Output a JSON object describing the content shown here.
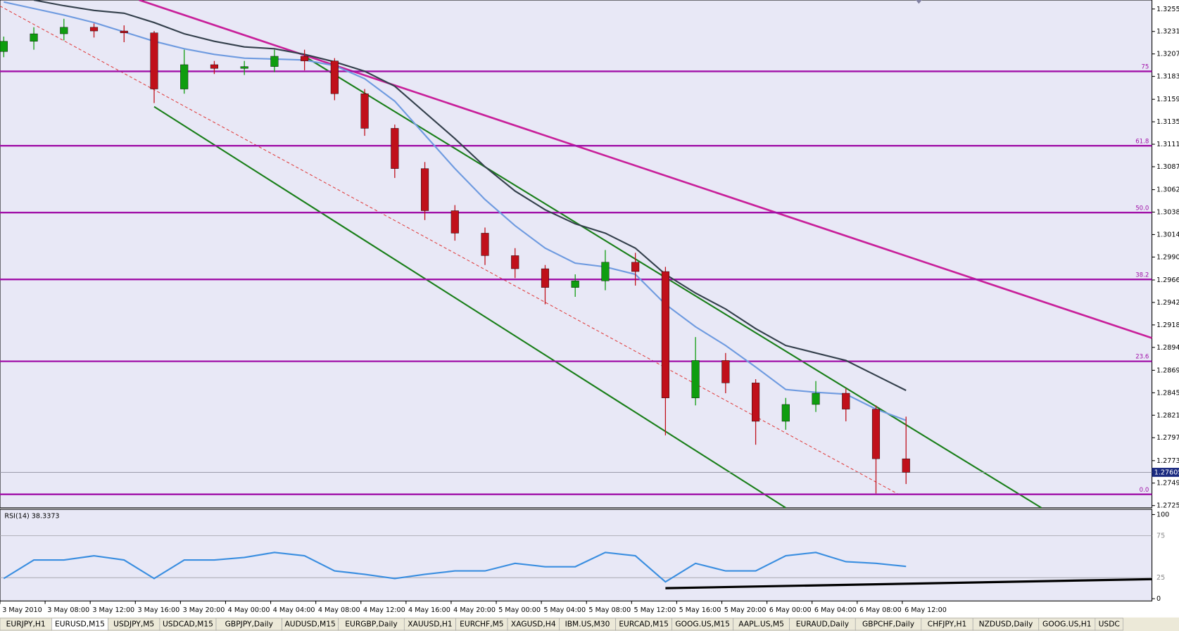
{
  "chart_data": {
    "type": "candlestick",
    "ylim": [
      1.27226,
      1.32651
    ],
    "yticks": [
      1.32555,
      1.32315,
      1.32075,
      1.31835,
      {
        "value": 1.3159,
        "label": "1.31590"
      },
      {
        "value": 1.3135,
        "label": "1.31350"
      },
      {
        "value": 1.3111,
        "label": "1.31110"
      },
      {
        "value": 1.3087,
        "label": "1.30870"
      },
      1.30625,
      1.30385,
      1.30145,
      1.29905,
      {
        "value": 1.2966,
        "label": "1.29660"
      },
      {
        "value": 1.2942,
        "label": "1.29420"
      },
      {
        "value": 1.2918,
        "label": "1.29180"
      },
      {
        "value": 1.2894,
        "label": "1.28940"
      },
      1.28695,
      1.28455,
      1.28215,
      1.27975,
      {
        "value": 1.2773,
        "label": "1.27730"
      },
      {
        "value": 1.2749,
        "label": "1.27490"
      },
      {
        "value": 1.2725,
        "label": "1.27250"
      }
    ],
    "up_color": "#0f9d0f",
    "down_color": "#c0101a",
    "open": [
      1.321,
      1.3221,
      1.3229,
      1.3236,
      1.3232,
      1.323,
      1.317,
      1.3196,
      1.3192,
      1.3194,
      1.3205,
      1.32,
      1.3165,
      1.3128,
      1.3085,
      1.304,
      1.3016,
      1.2992,
      1.2978,
      1.2958,
      1.2965,
      1.2985,
      1.2975,
      1.284,
      1.288,
      1.2856,
      1.2815,
      1.2833,
      1.2845,
      1.2828,
      1.2775
    ],
    "high": [
      1.3226,
      1.3236,
      1.3245,
      1.324,
      1.3238,
      1.3232,
      1.3212,
      1.32,
      1.32,
      1.3212,
      1.3212,
      1.3203,
      1.317,
      1.3132,
      1.3092,
      1.3046,
      1.3022,
      1.3,
      1.2982,
      1.2972,
      1.2998,
      1.2995,
      1.298,
      1.2905,
      1.2888,
      1.286,
      1.284,
      1.2858,
      1.285,
      1.2832,
      1.282
    ],
    "low": [
      1.3204,
      1.3212,
      1.3222,
      1.3225,
      1.322,
      1.3155,
      1.3165,
      1.3186,
      1.3185,
      1.3188,
      1.319,
      1.3158,
      1.312,
      1.3075,
      1.303,
      1.3008,
      1.2982,
      1.2968,
      1.294,
      1.2948,
      1.2955,
      1.296,
      1.28,
      1.2832,
      1.2845,
      1.279,
      1.2806,
      1.2825,
      1.2815,
      1.2738,
      1.2748
    ],
    "close": [
      1.3221,
      1.3229,
      1.3236,
      1.3232,
      1.323,
      1.317,
      1.3196,
      1.3192,
      1.3194,
      1.3205,
      1.32,
      1.3165,
      1.3128,
      1.3085,
      1.304,
      1.3016,
      1.2992,
      1.2978,
      1.2958,
      1.2965,
      1.2985,
      1.2975,
      1.284,
      1.288,
      1.2856,
      1.2815,
      1.2833,
      1.2845,
      1.2828,
      1.2775,
      1.27605
    ],
    "series": [
      {
        "color": "#6f9be0",
        "values": [
          1.3263,
          1.3256,
          1.3249,
          1.3241,
          1.3231,
          1.3221,
          1.3213,
          1.3207,
          1.3203,
          1.3202,
          1.3201,
          1.3195,
          1.3181,
          1.3157,
          1.3121,
          1.3085,
          1.3052,
          1.3024,
          1.3,
          1.2984,
          1.298,
          1.2972,
          1.294,
          1.2916,
          1.2896,
          1.2873,
          1.2849,
          1.2846,
          1.2844,
          1.2828,
          1.2816
        ]
      },
      {
        "color": "#34404c",
        "values": [
          null,
          1.3265,
          1.3259,
          1.3254,
          1.3251,
          1.3241,
          1.3229,
          1.3221,
          1.3215,
          1.3213,
          1.3207,
          1.3199,
          1.3189,
          1.3173,
          1.3145,
          1.3117,
          1.3087,
          1.3061,
          1.3041,
          1.3026,
          1.3016,
          1.3,
          1.2972,
          1.2952,
          1.2935,
          1.2914,
          1.2896,
          1.2888,
          1.288,
          1.2864,
          1.2848
        ]
      }
    ],
    "fib_color": "#a010a8",
    "fib_levels": [
      {
        "label": "75",
        "price": 1.31889
      },
      {
        "label": "61.8",
        "price": 1.31094
      },
      {
        "label": "50.0",
        "price": 1.3038
      },
      {
        "label": "38.2",
        "price": 1.29666
      },
      {
        "label": "23.6",
        "price": 1.28791
      },
      {
        "label": "0.0",
        "price": 1.2737
      }
    ],
    "current_price": 1.27605,
    "time_labels": [
      "3 May 2010",
      "3 May 08:00",
      "3 May 12:00",
      "3 May 16:00",
      "3 May 20:00",
      "4 May 00:00",
      "4 May 04:00",
      "4 May 08:00",
      "4 May 12:00",
      "4 May 16:00",
      "4 May 20:00",
      "5 May 00:00",
      "5 May 04:00",
      "5 May 08:00",
      "5 May 12:00",
      "5 May 16:00",
      "5 May 20:00",
      "6 May 00:00",
      "6 May 04:00",
      "6 May 08:00",
      "6 May 12:00"
    ],
    "rsi": {
      "title": "RSI(14) 38.3373",
      "color": "#3a8ee0",
      "ylim": [
        0,
        100
      ],
      "yticks": [
        0,
        25,
        75,
        100
      ],
      "values": [
        24,
        46,
        46,
        51,
        46,
        24,
        46,
        46,
        49,
        55,
        51,
        33,
        29,
        24,
        29,
        33,
        33,
        42,
        38,
        38,
        55,
        51,
        20,
        42,
        33,
        33,
        51,
        55,
        44,
        42,
        38.3373
      ]
    }
  },
  "active_tab": 1,
  "tabs": [
    "EURJPY,H1",
    "EURUSD,M15",
    "USDJPY,M5",
    "USDCAD,M15",
    "GBPJPY,Daily",
    "AUDUSD,M15",
    "EURGBP,Daily",
    "XAUUSD,H1",
    "EURCHF,M5",
    "XAGUSD,H4",
    "IBM.US,M30",
    "EURCAD,M15",
    "GOOG.US,M15",
    "AAPL.US,M5",
    "EURAUD,Daily",
    "GBPCHF,Daily",
    "CHFJPY,H1",
    "NZDUSD,Daily",
    "GOOG.US,H1",
    "USDC"
  ]
}
